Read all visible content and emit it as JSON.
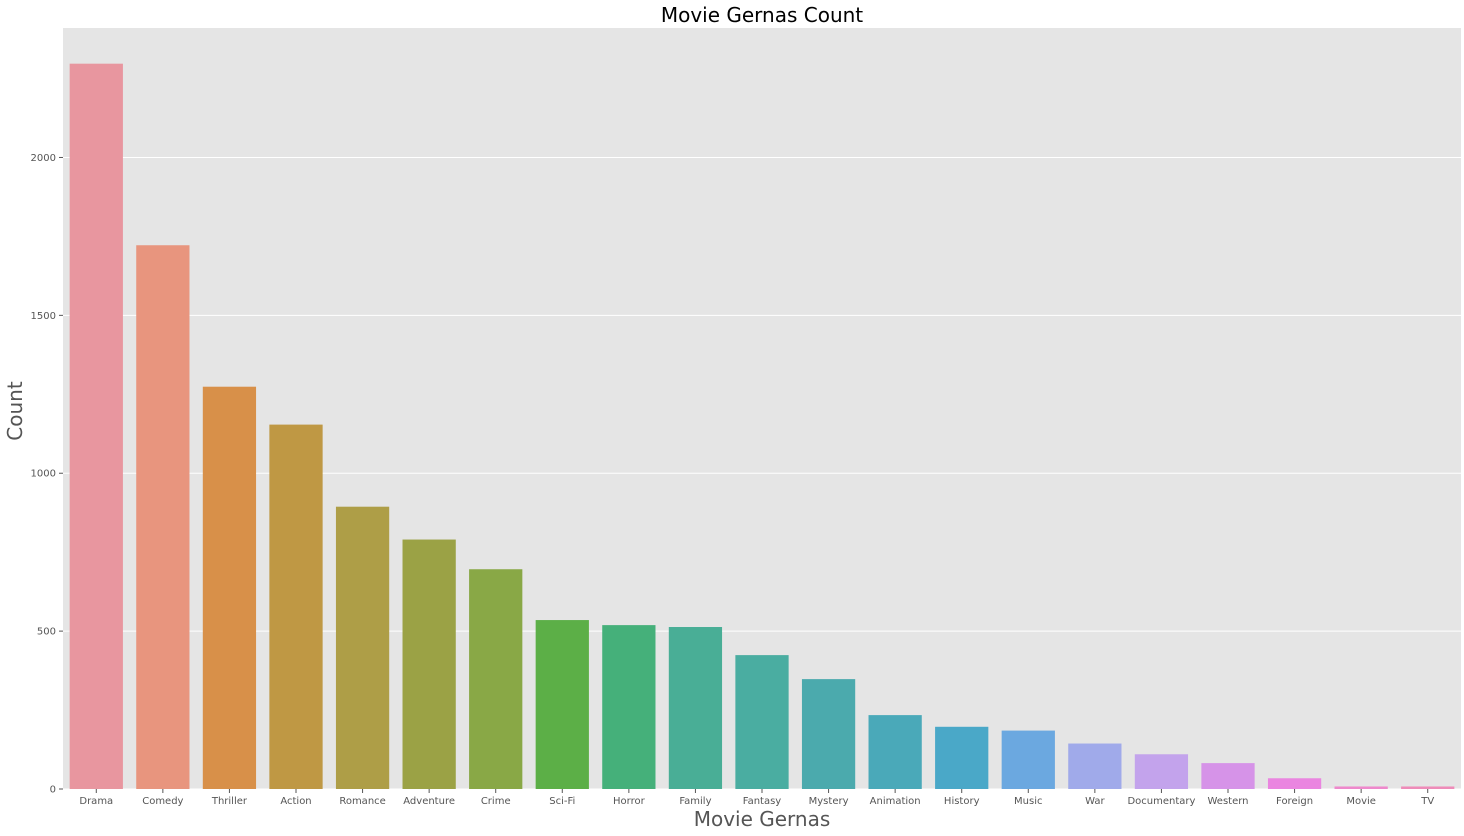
{
  "chart_data": {
    "type": "bar",
    "title": "Movie Gernas Count",
    "xlabel": "Movie Gernas",
    "ylabel": "Count",
    "categories": [
      "Drama",
      "Comedy",
      "Thriller",
      "Action",
      "Romance",
      "Adventure",
      "Crime",
      "Sci-Fi",
      "Horror",
      "Family",
      "Fantasy",
      "Mystery",
      "Animation",
      "History",
      "Music",
      "War",
      "Documentary",
      "Western",
      "Foreign",
      "Movie",
      "TV"
    ],
    "values": [
      2297,
      1722,
      1274,
      1154,
      894,
      790,
      696,
      535,
      519,
      513,
      424,
      348,
      234,
      197,
      185,
      144,
      110,
      82,
      34,
      8,
      8
    ],
    "ylim": [
      0,
      2410
    ],
    "yticks": [
      0,
      500,
      1000,
      1500,
      2000
    ],
    "grid": true,
    "colors": [
      "#e8969f",
      "#e8957e",
      "#d89049",
      "#bf9844",
      "#ae9e47",
      "#9ba245",
      "#89a846",
      "#5caf47",
      "#45b07a",
      "#49ae96",
      "#4aada1",
      "#4baaad",
      "#4aa9b9",
      "#4aa8c8",
      "#6ba8e0",
      "#a0aaea",
      "#c3a3ec",
      "#d693e8",
      "#ea85e0",
      "#ee89cc",
      "#ee8cb9"
    ],
    "background": "#e5e5e5"
  }
}
